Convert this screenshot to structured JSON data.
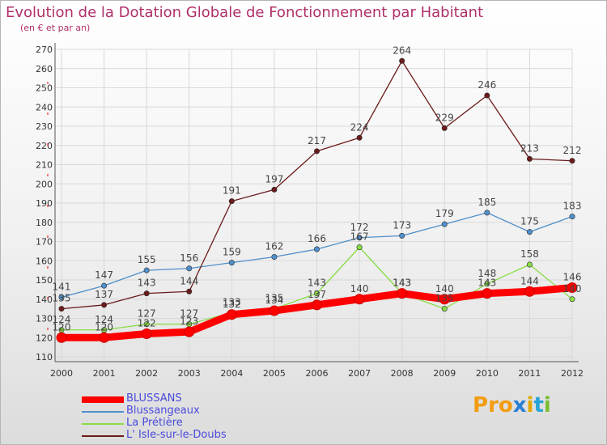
{
  "title": "Evolution de la Dotation Globale de Fonctionnement par Habitant",
  "subtitle": "(en € et par an)",
  "logo_text": "Proxiti",
  "chart_data": {
    "type": "line",
    "title": "Evolution de la Dotation Globale de Fonctionnement par Habitant",
    "subtitle": "(en € et par an)",
    "x": [
      "2000",
      "2001",
      "2002",
      "2003",
      "2004",
      "2005",
      "2006",
      "2007",
      "2008",
      "2009",
      "2010",
      "2011",
      "2012"
    ],
    "ylim": [
      110,
      270
    ],
    "yticks": [
      110,
      120,
      130,
      140,
      150,
      160,
      170,
      180,
      190,
      200,
      210,
      220,
      230,
      240,
      250,
      260,
      270
    ],
    "grid": true,
    "legend_position": "bottom-left",
    "series": [
      {
        "name": "BLUSSANS",
        "color": "#ff0000",
        "values": [
          120,
          120,
          122,
          123,
          132,
          134,
          137,
          140,
          143,
          140,
          143,
          144,
          146
        ]
      },
      {
        "name": "Blussangeaux",
        "color": "#4f8fcb",
        "values": [
          141,
          147,
          155,
          156,
          159,
          162,
          166,
          172,
          173,
          179,
          185,
          175,
          183
        ]
      },
      {
        "name": "La Prétière",
        "color": "#88dd44",
        "values": [
          124,
          124,
          127,
          127,
          133,
          135,
          143,
          167,
          143,
          135,
          148,
          158,
          140
        ]
      },
      {
        "name": "L' Isle-sur-le-Doubs",
        "color": "#6b1a1a",
        "values": [
          135,
          137,
          143,
          144,
          191,
          197,
          217,
          224,
          264,
          229,
          246,
          213,
          212
        ]
      }
    ]
  }
}
